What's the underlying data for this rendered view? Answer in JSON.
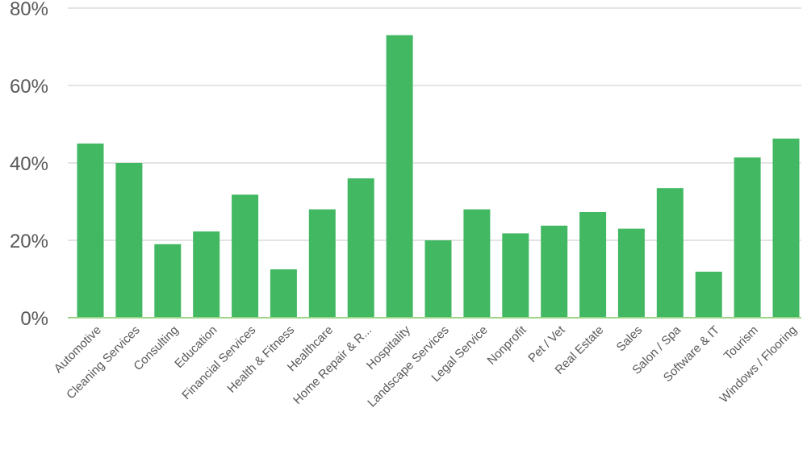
{
  "chart_data": {
    "type": "bar",
    "categories": [
      "Automotive",
      "Cleaning Services",
      "Consulting",
      "Education",
      "Financial Services",
      "Health & Fitness",
      "Healthcare",
      "Home Repair & R...",
      "Hospitality",
      "Landscape Services",
      "Legal Service",
      "Nonprofit",
      "Pet / Vet",
      "Real Estate",
      "Sales",
      "Salon / Spa",
      "Software & IT",
      "Tourism",
      "Windows / Flooring"
    ],
    "values": [
      45,
      40,
      19,
      22.3,
      31.8,
      12.5,
      28,
      36,
      73,
      20,
      28,
      21.8,
      23.8,
      27.3,
      23,
      33.5,
      11.9,
      41.4,
      46.3
    ],
    "y_ticks": [
      "0%",
      "20%",
      "40%",
      "60%",
      "80%"
    ],
    "y_tick_values": [
      0,
      20,
      40,
      60,
      80
    ],
    "ylim": [
      0,
      80
    ],
    "grid": true,
    "bar_color": "#42b862",
    "axis_color": "#9fd58a",
    "grid_color": "#c9c9c9",
    "text_color": "#595959"
  }
}
